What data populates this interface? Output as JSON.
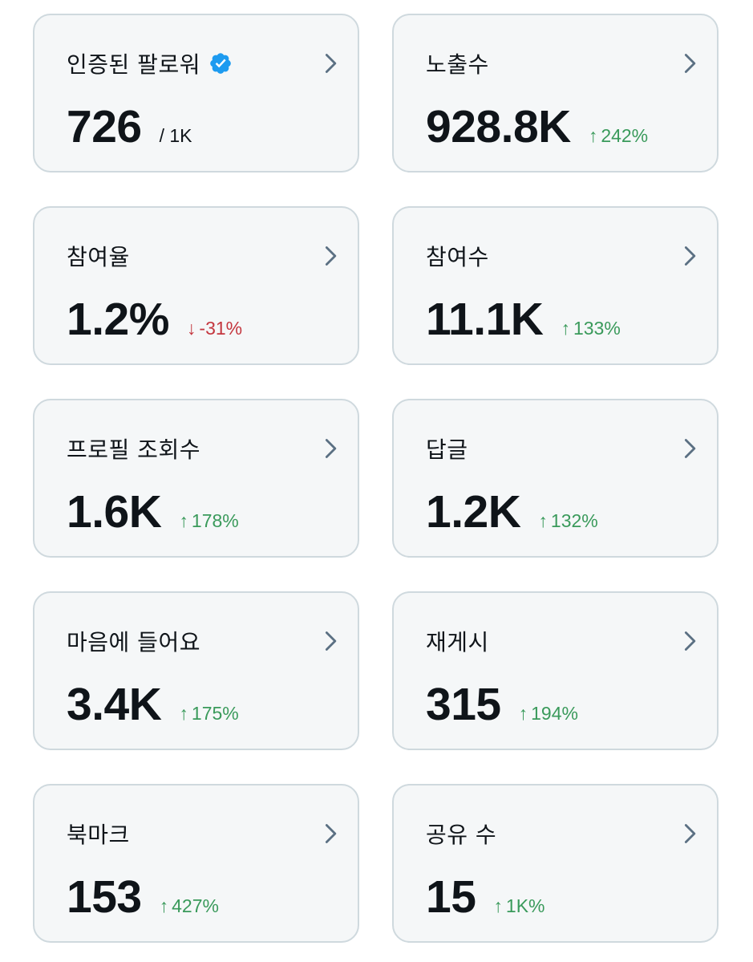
{
  "cards": [
    {
      "title": "인증된 팔로워",
      "value": "726",
      "sub": "/ 1K",
      "verified": true
    },
    {
      "title": "노출수",
      "value": "928.8K",
      "delta": "242%",
      "direction": "up"
    },
    {
      "title": "참여율",
      "value": "1.2%",
      "delta": "-31%",
      "direction": "down"
    },
    {
      "title": "참여수",
      "value": "11.1K",
      "delta": "133%",
      "direction": "up"
    },
    {
      "title": "프로필 조회수",
      "value": "1.6K",
      "delta": "178%",
      "direction": "up"
    },
    {
      "title": "답글",
      "value": "1.2K",
      "delta": "132%",
      "direction": "up"
    },
    {
      "title": "마음에 들어요",
      "value": "3.4K",
      "delta": "175%",
      "direction": "up"
    },
    {
      "title": "재게시",
      "value": "315",
      "delta": "194%",
      "direction": "up"
    },
    {
      "title": "북마크",
      "value": "153",
      "delta": "427%",
      "direction": "up"
    },
    {
      "title": "공유 수",
      "value": "15",
      "delta": "1K%",
      "direction": "up"
    }
  ],
  "colors": {
    "card_bg": "#f5f7f8",
    "card_border": "#cfd9de",
    "text": "#0f1419",
    "delta_up": "#3a9a5b",
    "delta_down": "#c4373f",
    "chevron": "#5b7083",
    "verified": "#1d9bf0"
  },
  "icons": {
    "arrow_up": "↑",
    "arrow_down": "↓"
  }
}
